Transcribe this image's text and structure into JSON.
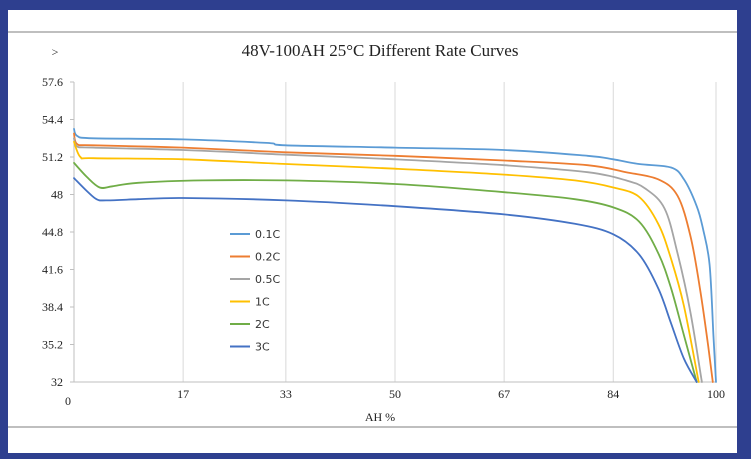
{
  "chart_data": {
    "type": "line",
    "title": "48V-100AH 25°C Different Rate Curves",
    "ylabel": ">",
    "xlabel": "AH %",
    "y_ticks": [
      "57.6",
      "54.4",
      "51.2",
      "48",
      "44.8",
      "41.6",
      "38.4",
      "35.2",
      "32"
    ],
    "x_ticks": [
      "0",
      "17",
      "33",
      "50",
      "67",
      "84",
      "100"
    ],
    "ylim": [
      32,
      57.6
    ],
    "xlim": [
      0,
      100
    ],
    "grid": "vertical",
    "legend_position": "center-left",
    "series": [
      {
        "name": "0.1C",
        "color": "#5b9bd5",
        "points": [
          [
            0,
            53.6
          ],
          [
            0.5,
            53.0
          ],
          [
            3,
            52.8
          ],
          [
            17,
            52.7
          ],
          [
            30,
            52.4
          ],
          [
            33,
            52.2
          ],
          [
            50,
            52.0
          ],
          [
            67,
            51.8
          ],
          [
            80,
            51.3
          ],
          [
            84,
            51.0
          ],
          [
            88,
            50.6
          ],
          [
            93,
            50.3
          ],
          [
            95,
            49.3
          ],
          [
            97,
            47.0
          ],
          [
            98,
            45.0
          ],
          [
            99,
            42.0
          ],
          [
            99.6,
            36.0
          ],
          [
            100,
            32.0
          ]
        ]
      },
      {
        "name": "0.2C",
        "color": "#ed7d31",
        "points": [
          [
            0,
            53.2
          ],
          [
            0.5,
            52.3
          ],
          [
            3,
            52.2
          ],
          [
            17,
            52.0
          ],
          [
            33,
            51.6
          ],
          [
            50,
            51.3
          ],
          [
            67,
            50.9
          ],
          [
            80,
            50.5
          ],
          [
            86,
            49.9
          ],
          [
            91,
            49.3
          ],
          [
            94,
            47.9
          ],
          [
            96,
            44.5
          ],
          [
            97.5,
            40.0
          ],
          [
            98.8,
            35.0
          ],
          [
            99.5,
            32.0
          ]
        ]
      },
      {
        "name": "0.5C",
        "color": "#a5a5a5",
        "points": [
          [
            0,
            52.8
          ],
          [
            0.5,
            52.1
          ],
          [
            3,
            52.0
          ],
          [
            17,
            51.8
          ],
          [
            33,
            51.4
          ],
          [
            50,
            51.0
          ],
          [
            67,
            50.5
          ],
          [
            80,
            49.9
          ],
          [
            86,
            49.2
          ],
          [
            89,
            48.5
          ],
          [
            92,
            46.8
          ],
          [
            94,
            43.0
          ],
          [
            96,
            38.0
          ],
          [
            97.8,
            32.0
          ]
        ]
      },
      {
        "name": "1C",
        "color": "#ffc000",
        "points": [
          [
            0,
            52.5
          ],
          [
            1,
            51.2
          ],
          [
            3,
            51.1
          ],
          [
            17,
            51.0
          ],
          [
            33,
            50.6
          ],
          [
            50,
            50.2
          ],
          [
            67,
            49.7
          ],
          [
            78,
            49.2
          ],
          [
            84,
            48.6
          ],
          [
            88,
            47.8
          ],
          [
            91,
            45.5
          ],
          [
            93,
            42.5
          ],
          [
            95,
            38.5
          ],
          [
            97.3,
            32.0
          ]
        ]
      },
      {
        "name": "2C",
        "color": "#70ad47",
        "points": [
          [
            0,
            50.7
          ],
          [
            2,
            49.5
          ],
          [
            4,
            48.6
          ],
          [
            6,
            48.7
          ],
          [
            10,
            49.0
          ],
          [
            20,
            49.2
          ],
          [
            33,
            49.2
          ],
          [
            50,
            48.9
          ],
          [
            67,
            48.2
          ],
          [
            78,
            47.6
          ],
          [
            84,
            46.9
          ],
          [
            88,
            45.7
          ],
          [
            91,
            43.0
          ],
          [
            93,
            40.0
          ],
          [
            95,
            36.0
          ],
          [
            97,
            32.0
          ]
        ]
      },
      {
        "name": "3C",
        "color": "#4472c4",
        "points": [
          [
            0,
            49.4
          ],
          [
            2,
            48.3
          ],
          [
            3.5,
            47.6
          ],
          [
            5,
            47.5
          ],
          [
            10,
            47.6
          ],
          [
            17,
            47.7
          ],
          [
            33,
            47.5
          ],
          [
            50,
            47.0
          ],
          [
            67,
            46.3
          ],
          [
            78,
            45.5
          ],
          [
            84,
            44.6
          ],
          [
            88,
            42.9
          ],
          [
            91,
            40.0
          ],
          [
            93,
            37.0
          ],
          [
            95,
            34.0
          ],
          [
            97,
            32.0
          ]
        ]
      }
    ]
  }
}
